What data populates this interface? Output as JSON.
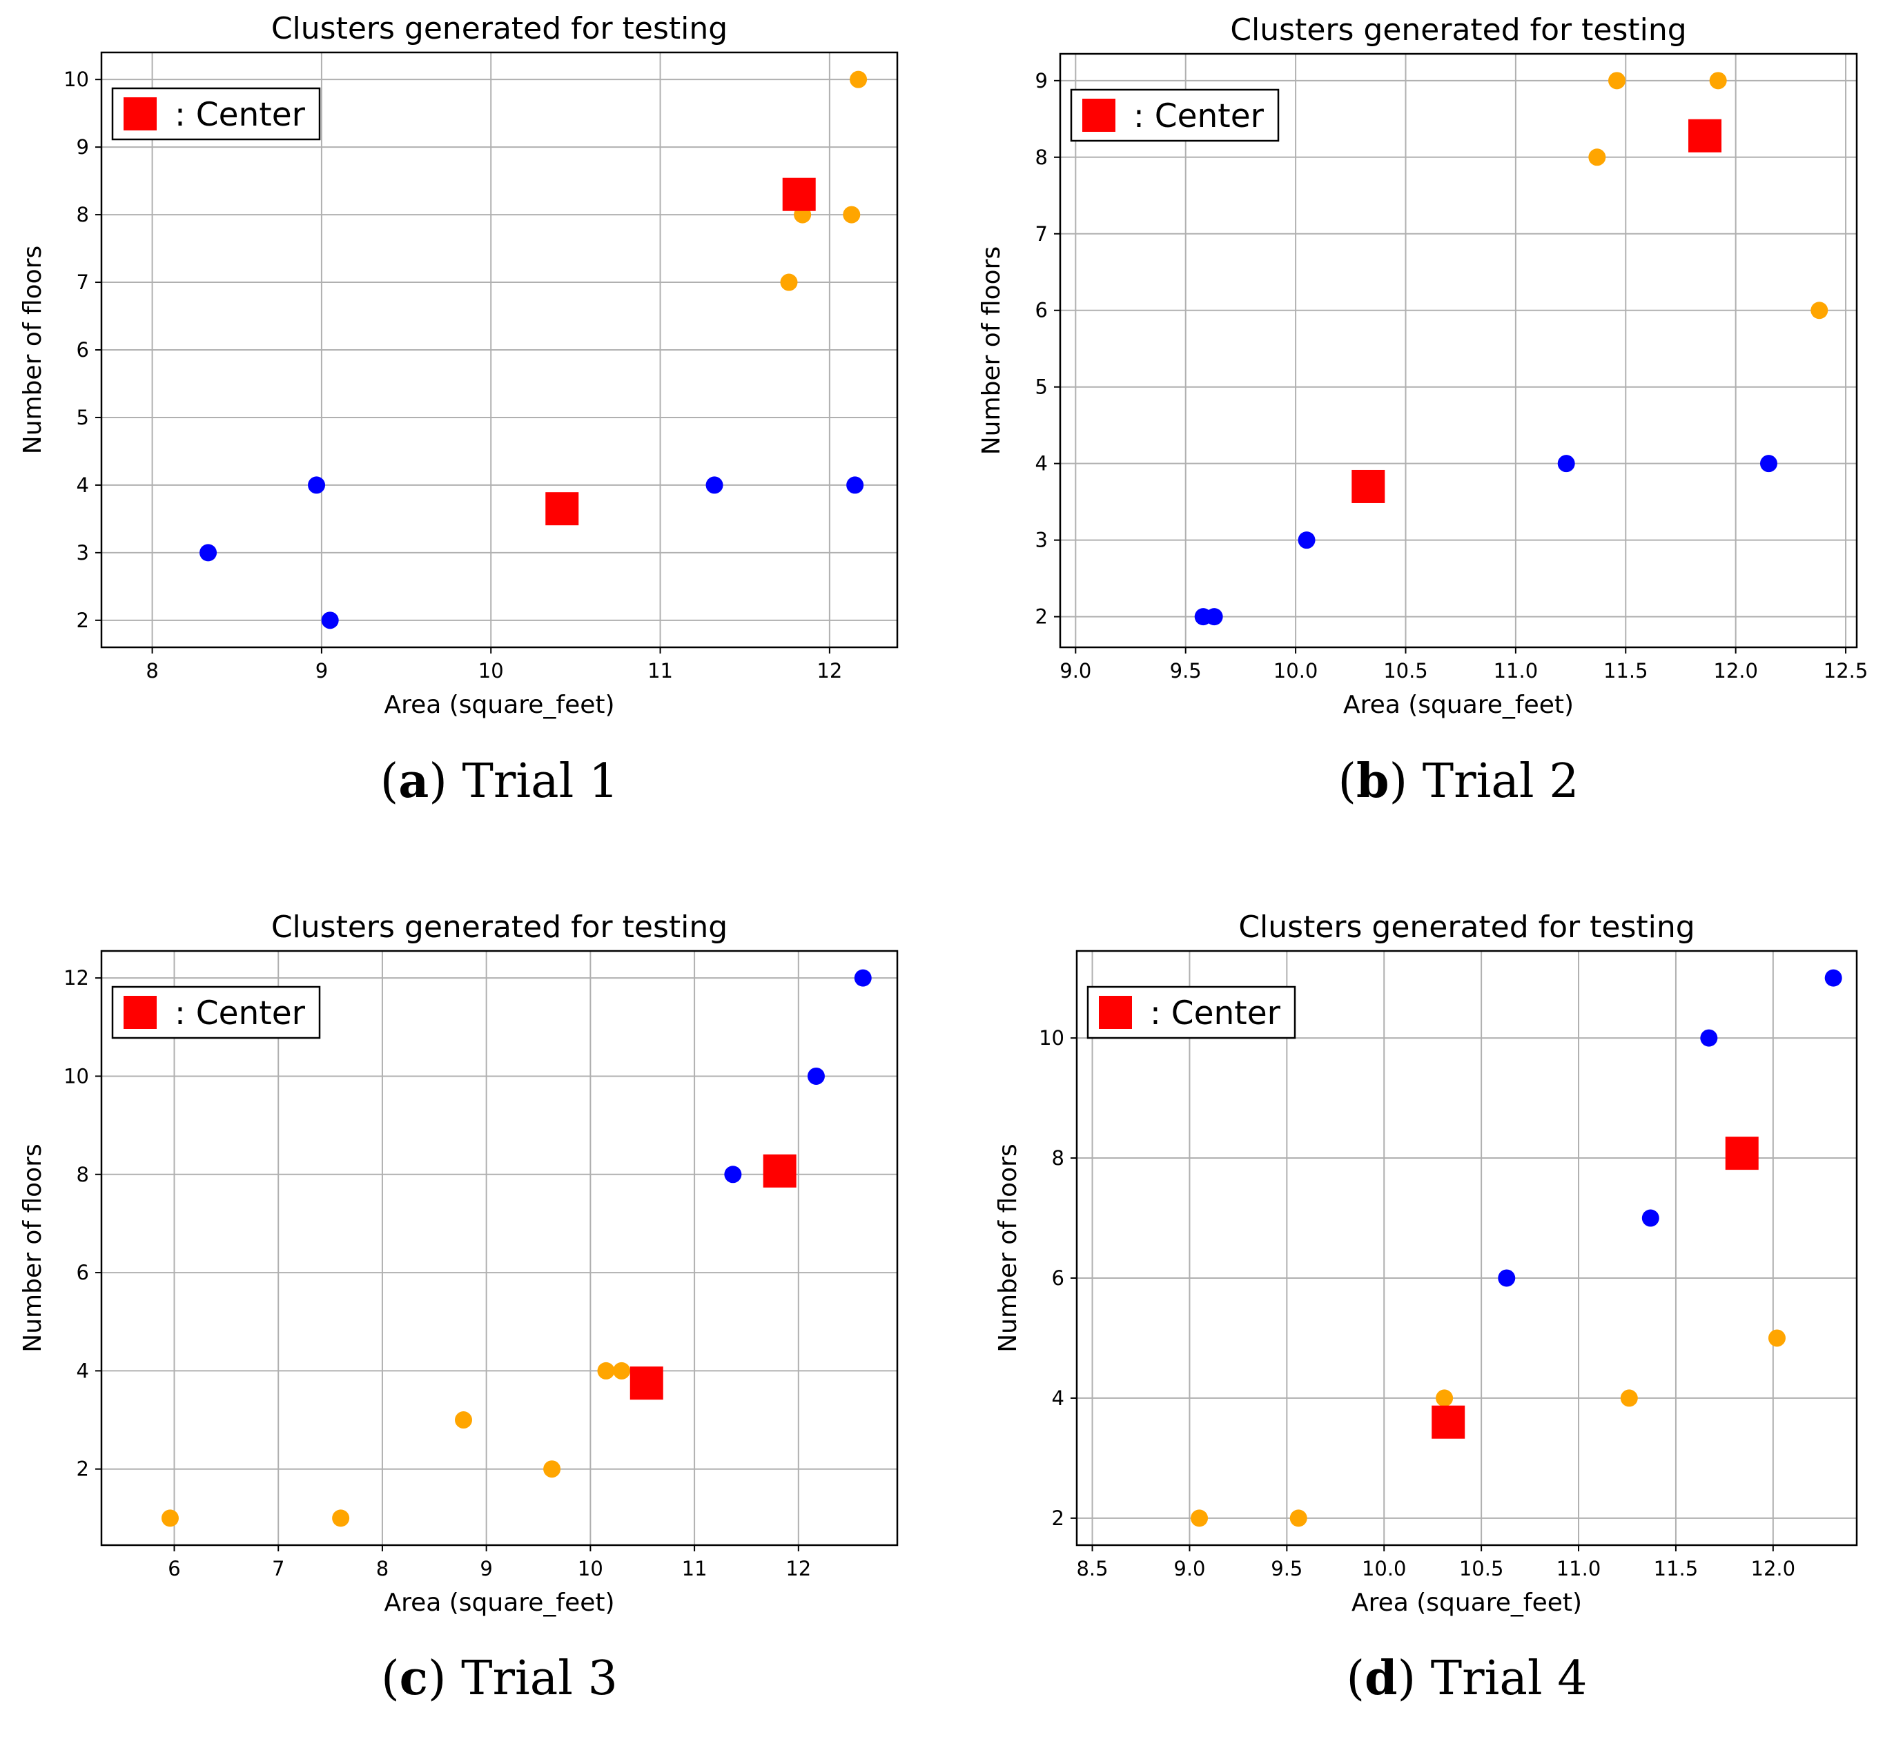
{
  "colors": {
    "cluster_a": "#0000ff",
    "cluster_b": "#ffa500",
    "center": "#ff0000",
    "grid": "#b0b0b0"
  },
  "chart_data": [
    {
      "type": "scatter",
      "title": "Clusters generated for testing",
      "xlabel": "Area (square_feet)",
      "ylabel": "Number of floors",
      "xlim": [
        7.7,
        12.4
      ],
      "ylim": [
        1.6,
        10.4
      ],
      "xticks": [
        "8",
        "9",
        "10",
        "11",
        "12"
      ],
      "xtick_values": [
        8,
        9,
        10,
        11,
        12
      ],
      "yticks": [
        "2",
        "3",
        "4",
        "5",
        "6",
        "7",
        "8",
        "9",
        "10"
      ],
      "ytick_values": [
        2,
        3,
        4,
        5,
        6,
        7,
        8,
        9,
        10
      ],
      "legend": {
        "label": ": Center",
        "position": "upper-left"
      },
      "caption": {
        "letter": "a",
        "text": "Trial 1"
      },
      "series": [
        {
          "name": "cluster-blue",
          "color": "#0000ff",
          "points": [
            [
              8.33,
              3
            ],
            [
              8.97,
              4
            ],
            [
              9.05,
              2
            ],
            [
              11.32,
              4
            ],
            [
              12.15,
              4
            ]
          ]
        },
        {
          "name": "cluster-orange",
          "color": "#ffa500",
          "points": [
            [
              11.76,
              7
            ],
            [
              11.84,
              8
            ],
            [
              12.13,
              8
            ],
            [
              12.17,
              10
            ]
          ]
        }
      ],
      "centers": [
        [
          10.42,
          3.65
        ],
        [
          11.82,
          8.3
        ]
      ]
    },
    {
      "type": "scatter",
      "title": "Clusters generated for testing",
      "xlabel": "Area (square_feet)",
      "ylabel": "Number of floors",
      "xlim": [
        8.93,
        12.55
      ],
      "ylim": [
        1.6,
        9.35
      ],
      "xticks": [
        "9.0",
        "9.5",
        "10.0",
        "10.5",
        "11.0",
        "11.5",
        "12.0",
        "12.5"
      ],
      "xtick_values": [
        9.0,
        9.5,
        10.0,
        10.5,
        11.0,
        11.5,
        12.0,
        12.5
      ],
      "yticks": [
        "2",
        "3",
        "4",
        "5",
        "6",
        "7",
        "8",
        "9"
      ],
      "ytick_values": [
        2,
        3,
        4,
        5,
        6,
        7,
        8,
        9
      ],
      "legend": {
        "label": ": Center",
        "position": "upper-left"
      },
      "caption": {
        "letter": "b",
        "text": "Trial 2"
      },
      "series": [
        {
          "name": "cluster-blue",
          "color": "#0000ff",
          "points": [
            [
              9.58,
              2
            ],
            [
              9.63,
              2
            ],
            [
              10.05,
              3
            ],
            [
              11.23,
              4
            ],
            [
              12.15,
              4
            ]
          ]
        },
        {
          "name": "cluster-orange",
          "color": "#ffa500",
          "points": [
            [
              11.37,
              8
            ],
            [
              11.46,
              9
            ],
            [
              11.92,
              9
            ],
            [
              12.38,
              6
            ]
          ]
        }
      ],
      "centers": [
        [
          10.33,
          3.7
        ],
        [
          11.86,
          8.28
        ]
      ]
    },
    {
      "type": "scatter",
      "title": "Clusters generated for testing",
      "xlabel": "Area (square_feet)",
      "ylabel": "Number of floors",
      "xlim": [
        5.3,
        12.95
      ],
      "ylim": [
        0.45,
        12.55
      ],
      "xticks": [
        "6",
        "7",
        "8",
        "9",
        "10",
        "11",
        "12"
      ],
      "xtick_values": [
        6,
        7,
        8,
        9,
        10,
        11,
        12
      ],
      "yticks": [
        "2",
        "4",
        "6",
        "8",
        "10",
        "12"
      ],
      "ytick_values": [
        2,
        4,
        6,
        8,
        10,
        12
      ],
      "legend": {
        "label": ": Center",
        "position": "upper-left"
      },
      "caption": {
        "letter": "c",
        "text": "Trial 3"
      },
      "series": [
        {
          "name": "cluster-blue",
          "color": "#0000ff",
          "points": [
            [
              11.37,
              8
            ],
            [
              12.17,
              10
            ],
            [
              12.62,
              12
            ]
          ]
        },
        {
          "name": "cluster-orange",
          "color": "#ffa500",
          "points": [
            [
              5.96,
              1
            ],
            [
              7.6,
              1
            ],
            [
              8.78,
              3
            ],
            [
              9.63,
              2
            ],
            [
              10.15,
              4
            ],
            [
              10.3,
              4
            ]
          ]
        }
      ],
      "centers": [
        [
          10.54,
          3.75
        ],
        [
          11.82,
          8.07
        ]
      ]
    },
    {
      "type": "scatter",
      "title": "Clusters generated for testing",
      "xlabel": "Area (square_feet)",
      "ylabel": "Number of floors",
      "xlim": [
        8.42,
        12.43
      ],
      "ylim": [
        1.55,
        11.45
      ],
      "xticks": [
        "8.5",
        "9.0",
        "9.5",
        "10.0",
        "10.5",
        "11.0",
        "11.5",
        "12.0"
      ],
      "xtick_values": [
        8.5,
        9.0,
        9.5,
        10.0,
        10.5,
        11.0,
        11.5,
        12.0
      ],
      "yticks": [
        "2",
        "4",
        "6",
        "8",
        "10"
      ],
      "ytick_values": [
        2,
        4,
        6,
        8,
        10
      ],
      "legend": {
        "label": ": Center",
        "position": "upper-left"
      },
      "caption": {
        "letter": "d",
        "text": "Trial 4"
      },
      "series": [
        {
          "name": "cluster-blue",
          "color": "#0000ff",
          "points": [
            [
              10.63,
              6
            ],
            [
              11.37,
              7
            ],
            [
              11.67,
              10
            ],
            [
              12.31,
              11
            ]
          ]
        },
        {
          "name": "cluster-orange",
          "color": "#ffa500",
          "points": [
            [
              9.05,
              2
            ],
            [
              9.56,
              2
            ],
            [
              10.31,
              4
            ],
            [
              11.26,
              4
            ],
            [
              12.02,
              5
            ]
          ]
        }
      ],
      "centers": [
        [
          10.33,
          3.6
        ],
        [
          11.84,
          8.08
        ]
      ]
    }
  ]
}
